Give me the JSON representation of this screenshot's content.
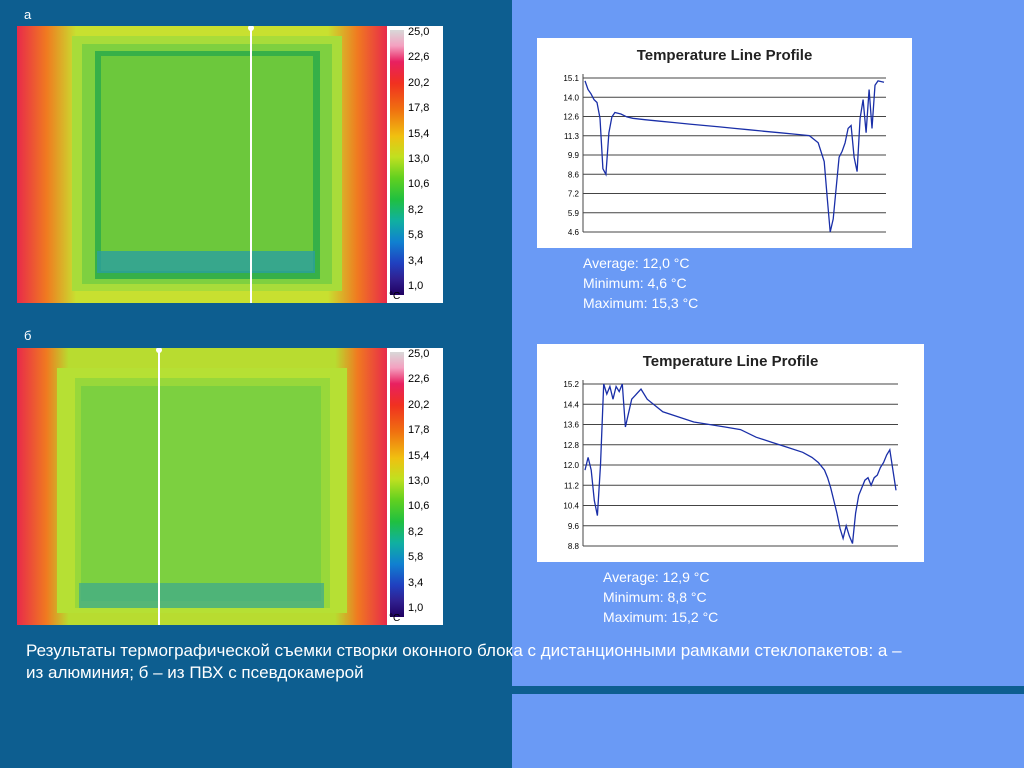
{
  "panels": [
    {
      "label": "а",
      "scale": {
        "ticks": [
          "25,0",
          "22,6",
          "20,2",
          "17,8",
          "15,4",
          "13,0",
          "10,6",
          "8,2",
          "5,8",
          "3,4",
          "1,0"
        ],
        "unit": "°C"
      },
      "cursor_fraction": 0.63,
      "profile": {
        "title": "Temperature Line Profile",
        "ticks": [
          "15.1",
          "14.0",
          "12.6",
          "11.3",
          "9.9",
          "8.6",
          "7.2",
          "5.9",
          "4.6"
        ],
        "ylim": [
          4.6,
          15.3
        ],
        "stats": {
          "average": "Average: 12,0 °C",
          "minimum": "Minimum: 4,6 °C",
          "maximum": "Maximum: 15,3 °C"
        }
      }
    },
    {
      "label": "б",
      "scale": {
        "ticks": [
          "25,0",
          "22,6",
          "20,2",
          "17,8",
          "15,4",
          "13,0",
          "10,6",
          "8,2",
          "5,8",
          "3,4",
          "1,0"
        ],
        "unit": "°C"
      },
      "cursor_fraction": 0.38,
      "profile": {
        "title": "Temperature Line Profile",
        "ticks": [
          "15.2",
          "14.4",
          "13.6",
          "12.8",
          "12.0",
          "11.2",
          "10.4",
          "9.6",
          "8.8"
        ],
        "ylim": [
          8.8,
          15.2
        ],
        "stats": {
          "average": "Average: 12,9 °C",
          "minimum": "Minimum: 8,8 °C",
          "maximum": "Maximum: 15,2 °C"
        }
      }
    }
  ],
  "caption": "Результаты термографической съемки створки оконного блока с дистанционными рамками стеклопакетов: а – из алюминия; б – из ПВХ с псевдокамерой",
  "chart_data": [
    {
      "type": "line",
      "title": "Temperature Line Profile",
      "ylim": [
        4.6,
        15.3
      ],
      "x": [
        0,
        1,
        2,
        3,
        4,
        5,
        6,
        7,
        8,
        9,
        10,
        12,
        14,
        16,
        20,
        25,
        30,
        35,
        40,
        45,
        50,
        55,
        60,
        65,
        70,
        75,
        78,
        80,
        81,
        82,
        83,
        85,
        86,
        87,
        88,
        89,
        90,
        91,
        92,
        93,
        94,
        95,
        96,
        97,
        98,
        100
      ],
      "series": [
        {
          "values": [
            15.1,
            14.5,
            14.2,
            13.8,
            13.6,
            12.5,
            9.0,
            8.6,
            11.5,
            12.6,
            12.9,
            12.8,
            12.6,
            12.5,
            12.4,
            12.3,
            12.2,
            12.1,
            12.0,
            11.9,
            11.8,
            11.7,
            11.6,
            11.5,
            11.4,
            11.3,
            10.8,
            9.5,
            7.0,
            4.6,
            5.5,
            9.8,
            10.2,
            10.8,
            11.8,
            12.0,
            9.8,
            8.8,
            12.5,
            13.8,
            11.5,
            14.5,
            11.8,
            14.8,
            15.1,
            15.0
          ]
        }
      ],
      "grid": true
    },
    {
      "type": "line",
      "title": "Temperature Line Profile",
      "ylim": [
        8.8,
        15.2
      ],
      "x": [
        0,
        1,
        2,
        3,
        4,
        5,
        6,
        7,
        8,
        9,
        10,
        11,
        12,
        13,
        15,
        18,
        20,
        25,
        30,
        35,
        40,
        45,
        50,
        55,
        60,
        65,
        70,
        73,
        75,
        77,
        78,
        79,
        80,
        81,
        82,
        83,
        84,
        85,
        86,
        87,
        88,
        90,
        91,
        92,
        93,
        94,
        95,
        96,
        97,
        98,
        100
      ],
      "series": [
        {
          "values": [
            11.8,
            12.3,
            11.8,
            10.6,
            10.0,
            12.0,
            15.2,
            14.8,
            15.1,
            14.6,
            15.1,
            14.9,
            15.2,
            13.5,
            14.6,
            15.0,
            14.6,
            14.1,
            13.9,
            13.7,
            13.6,
            13.5,
            13.4,
            13.1,
            12.9,
            12.7,
            12.5,
            12.3,
            12.1,
            11.8,
            11.5,
            11.1,
            10.6,
            10.1,
            9.5,
            9.1,
            9.6,
            9.2,
            8.9,
            10.1,
            10.8,
            11.4,
            11.5,
            11.2,
            11.5,
            11.6,
            11.9,
            12.1,
            12.4,
            12.6,
            11.0
          ]
        }
      ],
      "grid": true
    }
  ]
}
